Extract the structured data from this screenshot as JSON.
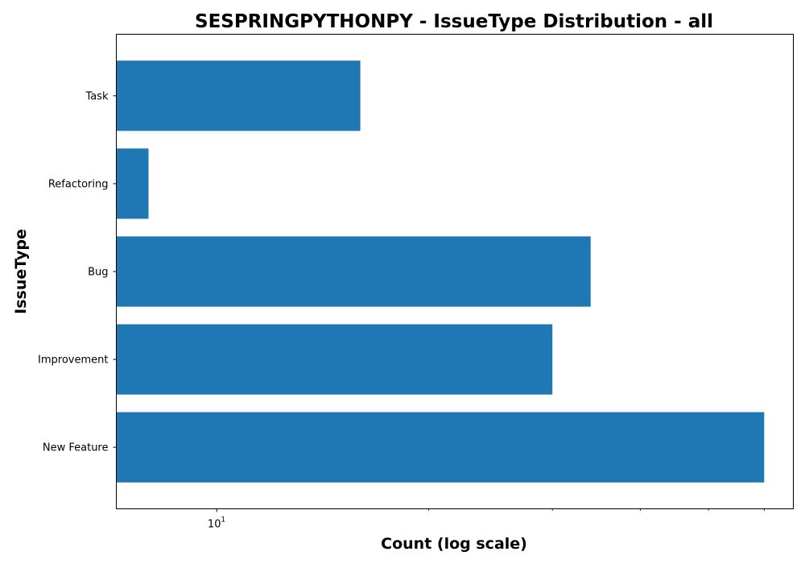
{
  "chart_data": {
    "type": "bar",
    "orientation": "horizontal",
    "title": "SESPRINGPYTHONPY - IssueType Distribution - all",
    "xlabel": "Count (log scale)",
    "ylabel": "IssueType",
    "x_scale": "log",
    "xlim": [
      7.2,
      66
    ],
    "x_major_ticks": [
      {
        "value": 10,
        "base": "10",
        "exponent": "1"
      }
    ],
    "x_minor_ticks": [
      20,
      30,
      40,
      50,
      60
    ],
    "categories": [
      "New Feature",
      "Improvement",
      "Bug",
      "Refactoring",
      "Task"
    ],
    "values": [
      60,
      30,
      34,
      8,
      16
    ],
    "bar_color": "#1f77b4",
    "grid": false,
    "legend": "none"
  }
}
